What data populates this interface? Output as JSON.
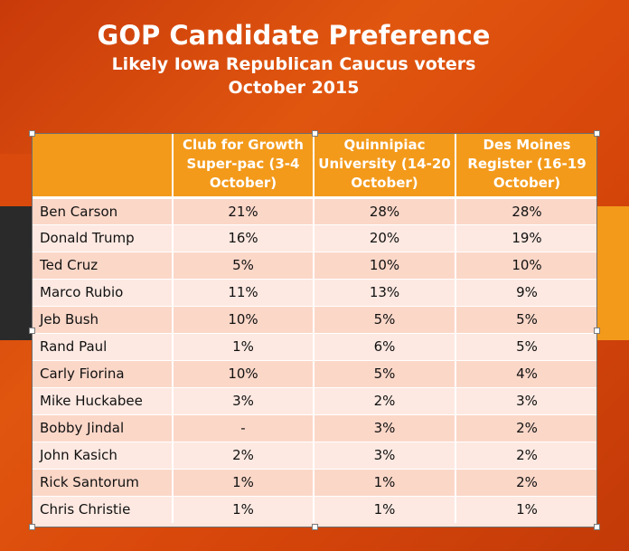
{
  "slide": {
    "title": "GOP Candidate Preference",
    "subtitle_line1": "Likely Iowa Republican Caucus voters",
    "subtitle_line2": "October 2015"
  },
  "table": {
    "headers": [
      "",
      "Club for Growth Super-pac (3-4 October)",
      "Quinnipiac University (14-20 October)",
      "Des Moines Register (16-19 October)"
    ],
    "rows": [
      [
        "Ben Carson",
        "21%",
        "28%",
        "28%"
      ],
      [
        "Donald Trump",
        "16%",
        "20%",
        "19%"
      ],
      [
        "Ted Cruz",
        "5%",
        "10%",
        "10%"
      ],
      [
        "Marco Rubio",
        "11%",
        "13%",
        "9%"
      ],
      [
        "Jeb Bush",
        "10%",
        "5%",
        "5%"
      ],
      [
        "Rand Paul",
        "1%",
        "6%",
        "5%"
      ],
      [
        "Carly Fiorina",
        "10%",
        "5%",
        "4%"
      ],
      [
        "Mike Huckabee",
        "3%",
        "2%",
        "3%"
      ],
      [
        "Bobby Jindal",
        "-",
        "3%",
        "2%"
      ],
      [
        "John Kasich",
        "2%",
        "3%",
        "2%"
      ],
      [
        "Rick Santorum",
        "1%",
        "1%",
        "2%"
      ],
      [
        "Chris Christie",
        "1%",
        "1%",
        "1%"
      ]
    ]
  },
  "colors": {
    "header_bg": "#f39a1b",
    "row_odd": "#fbd7c8",
    "row_even": "#fde9e2",
    "slide_bg": "#d9480b"
  }
}
